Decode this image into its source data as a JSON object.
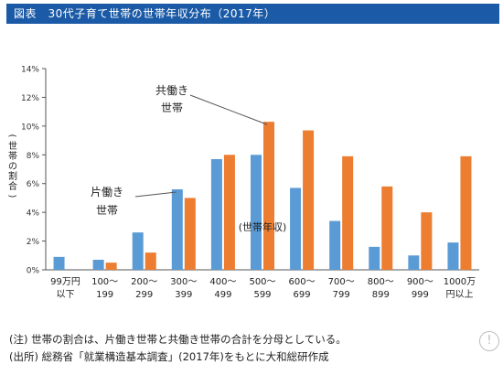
{
  "title": "図表　30代子育て世帯の世帯年収分布（2017年）",
  "notes": {
    "note1": "(注) 世帯の割合は、片働き世帯と共働き世帯の合計を分母としている。",
    "note2": "(出所) 総務省「就業構造基本調査」(2017年)をもとに大和総研作成"
  },
  "colors": {
    "single_income": "#5b9bd5",
    "dual_income": "#ed7d31",
    "title_bg": "#1b5aa6"
  },
  "chart_data": {
    "type": "bar",
    "title": "",
    "xlabel": "(世帯年収)",
    "ylabel": "(世帯の割合)",
    "ylim": [
      0,
      14
    ],
    "y_ticks": [
      "0%",
      "2%",
      "4%",
      "6%",
      "8%",
      "10%",
      "12%",
      "14%"
    ],
    "y_tick_values": [
      0,
      2,
      4,
      6,
      8,
      10,
      12,
      14
    ],
    "categories": [
      [
        "99万円",
        "以下"
      ],
      [
        "100～",
        "199"
      ],
      [
        "200～",
        "299"
      ],
      [
        "300～",
        "399"
      ],
      [
        "400～",
        "499"
      ],
      [
        "500～",
        "599"
      ],
      [
        "600～",
        "699"
      ],
      [
        "700～",
        "799"
      ],
      [
        "800～",
        "899"
      ],
      [
        "900～",
        "999"
      ],
      [
        "1000万",
        "円以上"
      ]
    ],
    "series": [
      {
        "name": "片働き世帯",
        "label_lines": [
          "片働き",
          "世帯"
        ],
        "values": [
          0.9,
          0.7,
          2.6,
          5.6,
          7.7,
          8.0,
          5.7,
          3.4,
          1.6,
          1.0,
          1.9
        ]
      },
      {
        "name": "共働き世帯",
        "label_lines": [
          "共働き",
          "世帯"
        ],
        "values": [
          0.0,
          0.5,
          1.2,
          5.0,
          8.0,
          10.3,
          9.7,
          7.9,
          5.8,
          4.0,
          7.9
        ]
      }
    ],
    "grid": false,
    "legend": "callout labels"
  }
}
